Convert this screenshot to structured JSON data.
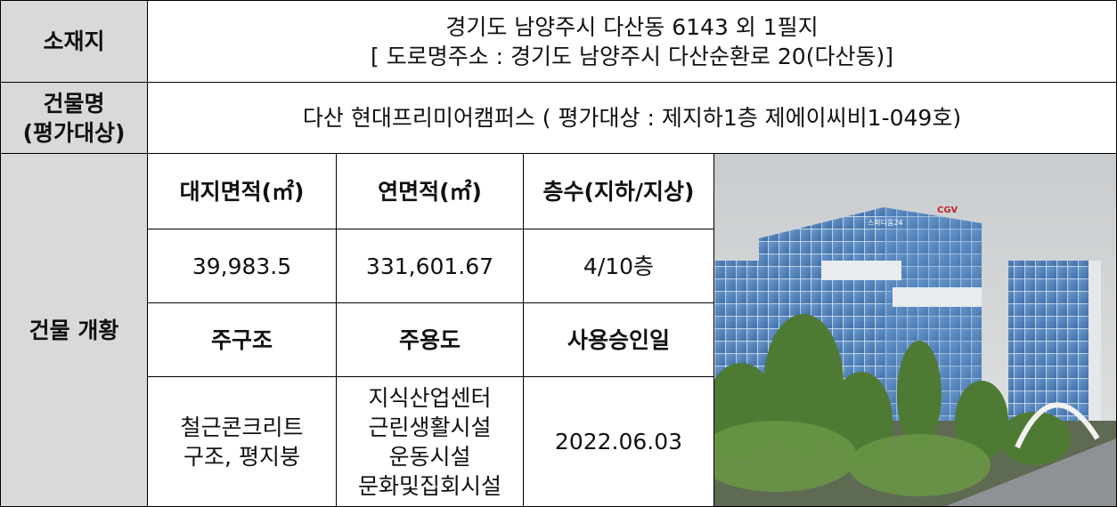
{
  "location": {
    "label": "소재지",
    "lines": [
      "경기도 남양주시 다산동 6143 외 1필지",
      "[ 도로명주소 : 경기도 남양주시 다산순환로 20(다산동)]"
    ]
  },
  "building": {
    "label_lines": [
      "건물명",
      "(평가대상)"
    ],
    "value": "다산 현대프리미어캠퍼스 ( 평가대상 : 제지하1층 제에이씨비1-049호)"
  },
  "overview": {
    "label": "건물 개황",
    "headers1": [
      "대지면적(㎡)",
      "연면적(㎡)",
      "층수(지하/지상)"
    ],
    "values1": [
      "39,983.5",
      "331,601.67",
      "4/10층"
    ],
    "headers2": [
      "주구조",
      "주용도",
      "사용승인일"
    ],
    "values2": [
      [
        "철근콘크리트",
        "구조, 평지붕"
      ],
      [
        "지식산업센터",
        "근린생활시설",
        "운동시설",
        "문화및집회시설"
      ],
      [
        "2022.06.03"
      ]
    ]
  },
  "photo": {
    "signs": [
      "스파디움24",
      "CGV"
    ]
  }
}
